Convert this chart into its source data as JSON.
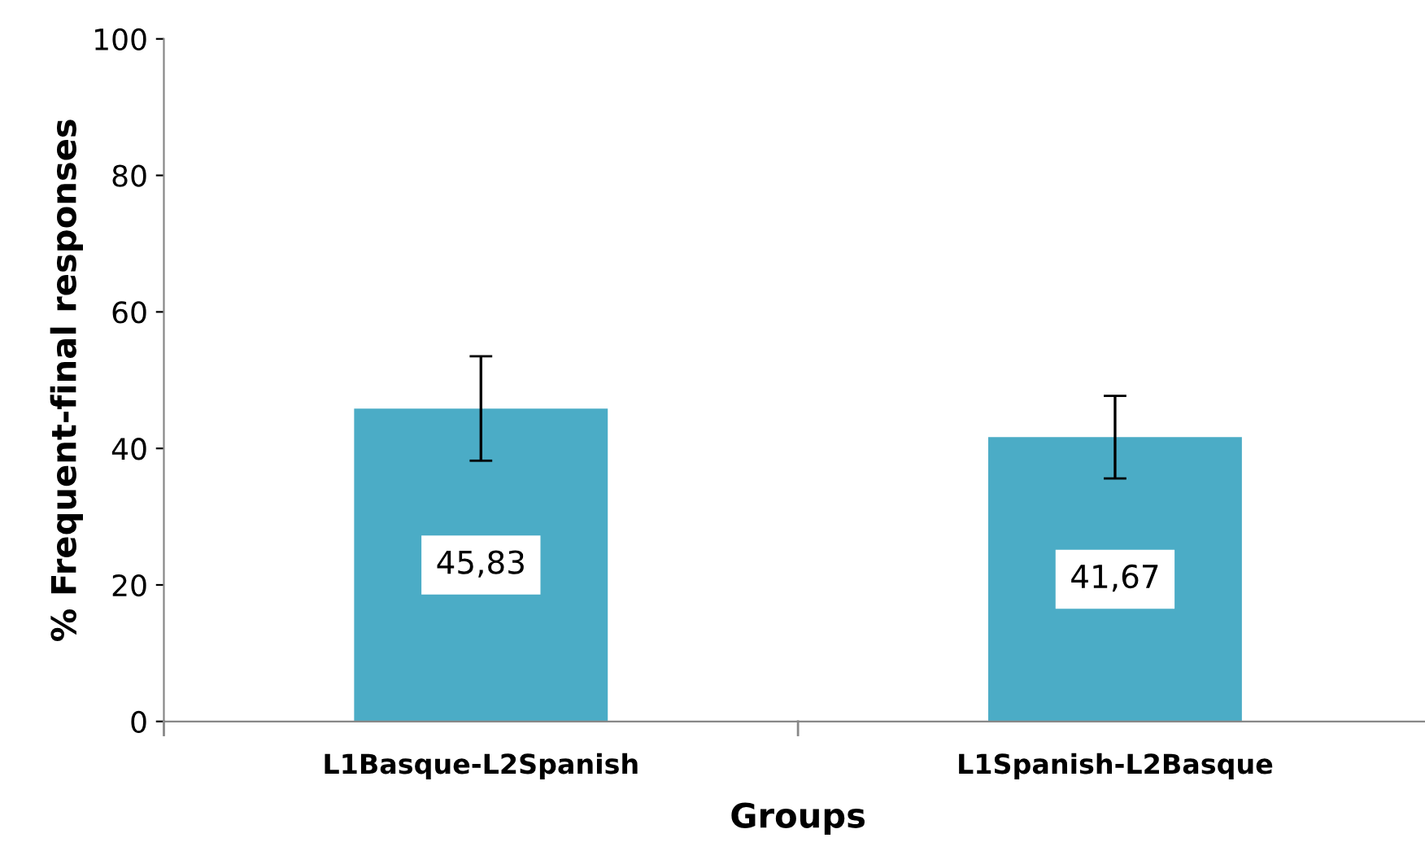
{
  "chart_data": {
    "type": "bar",
    "xlabel": "Groups",
    "ylabel": "% Frequent-final responses",
    "categories": [
      "L1Basque-L2Spanish",
      "L1Spanish-L2Basque"
    ],
    "values": [
      45.83,
      41.67
    ],
    "value_labels": [
      "45,83",
      "41,67"
    ],
    "errors": [
      [
        38.2,
        53.5
      ],
      [
        35.6,
        47.7
      ]
    ],
    "color": "#4bacc6",
    "ylim": [
      0,
      100
    ],
    "yticks": [
      0,
      20,
      40,
      60,
      80,
      100
    ],
    "grid": false,
    "legend": false
  }
}
